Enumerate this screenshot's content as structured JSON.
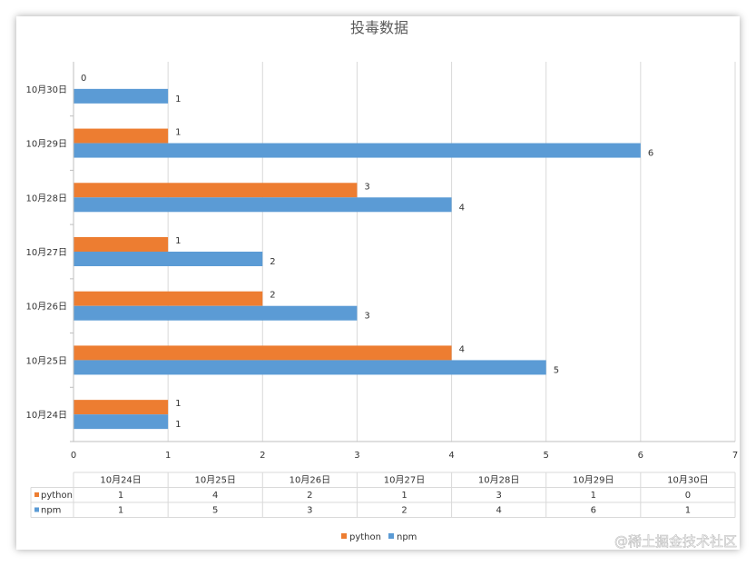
{
  "watermark": "@稀土掘金技术社区",
  "colors": {
    "python": "#ED7D31",
    "npm": "#5B9BD5",
    "grid": "#D9D9D9",
    "text": "#333333"
  },
  "chart_data": {
    "type": "bar",
    "orientation": "horizontal",
    "title": "投毒数据",
    "categories": [
      "10月24日",
      "10月25日",
      "10月26日",
      "10月27日",
      "10月28日",
      "10月29日",
      "10月30日"
    ],
    "series": [
      {
        "name": "python",
        "values": [
          1,
          4,
          2,
          1,
          3,
          1,
          0
        ]
      },
      {
        "name": "npm",
        "values": [
          1,
          5,
          3,
          2,
          4,
          6,
          1
        ]
      }
    ],
    "xticks": [
      0,
      1,
      2,
      3,
      4,
      5,
      6,
      7
    ],
    "xlim": [
      0,
      7
    ],
    "grid": "vertical",
    "legend": "bottom",
    "data_table": true
  }
}
